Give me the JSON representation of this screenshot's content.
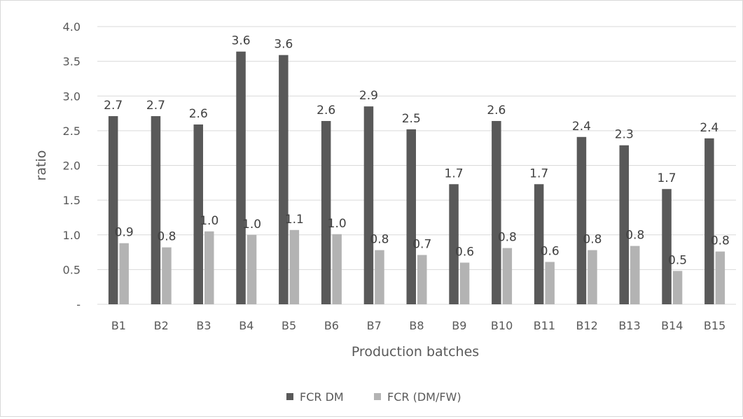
{
  "chart_data": {
    "type": "bar",
    "categories": [
      "B1",
      "B2",
      "B3",
      "B4",
      "B5",
      "B6",
      "B7",
      "B8",
      "B9",
      "B10",
      "B11",
      "B12",
      "B13",
      "B14",
      "B15"
    ],
    "series": [
      {
        "name": "FCR DM",
        "color": "#595959",
        "values": [
          2.71,
          2.71,
          2.59,
          3.64,
          3.59,
          2.64,
          2.85,
          2.52,
          1.73,
          2.64,
          1.73,
          2.41,
          2.29,
          1.66,
          2.39
        ],
        "labels": [
          "2.7",
          "2.7",
          "2.6",
          "3.6",
          "3.6",
          "2.6",
          "2.9",
          "2.5",
          "1.7",
          "2.6",
          "1.7",
          "2.4",
          "2.3",
          "1.7",
          "2.4"
        ]
      },
      {
        "name": "FCR (DM/FW)",
        "color": "#b3b3b3",
        "values": [
          0.88,
          0.82,
          1.05,
          1.0,
          1.07,
          1.01,
          0.78,
          0.71,
          0.6,
          0.81,
          0.61,
          0.78,
          0.84,
          0.48,
          0.76
        ],
        "labels": [
          "0.9",
          "0.8",
          "1.0",
          "1.0",
          "1.1",
          "1.0",
          "0.8",
          "0.7",
          "0.6",
          "0.8",
          "0.6",
          "0.8",
          "0.8",
          "0.5",
          "0.8"
        ]
      }
    ],
    "xlabel": "Production batches",
    "ylabel": "ratio",
    "ylim": [
      0,
      4.0
    ],
    "yticks": [
      0,
      0.5,
      1.0,
      1.5,
      2.0,
      2.5,
      3.0,
      3.5,
      4.0
    ],
    "ytick_labels": [
      "-",
      "0.5",
      "1.0",
      "1.5",
      "2.0",
      "2.5",
      "3.0",
      "3.5",
      "4.0"
    ],
    "grid": true,
    "legend": "bottom"
  }
}
